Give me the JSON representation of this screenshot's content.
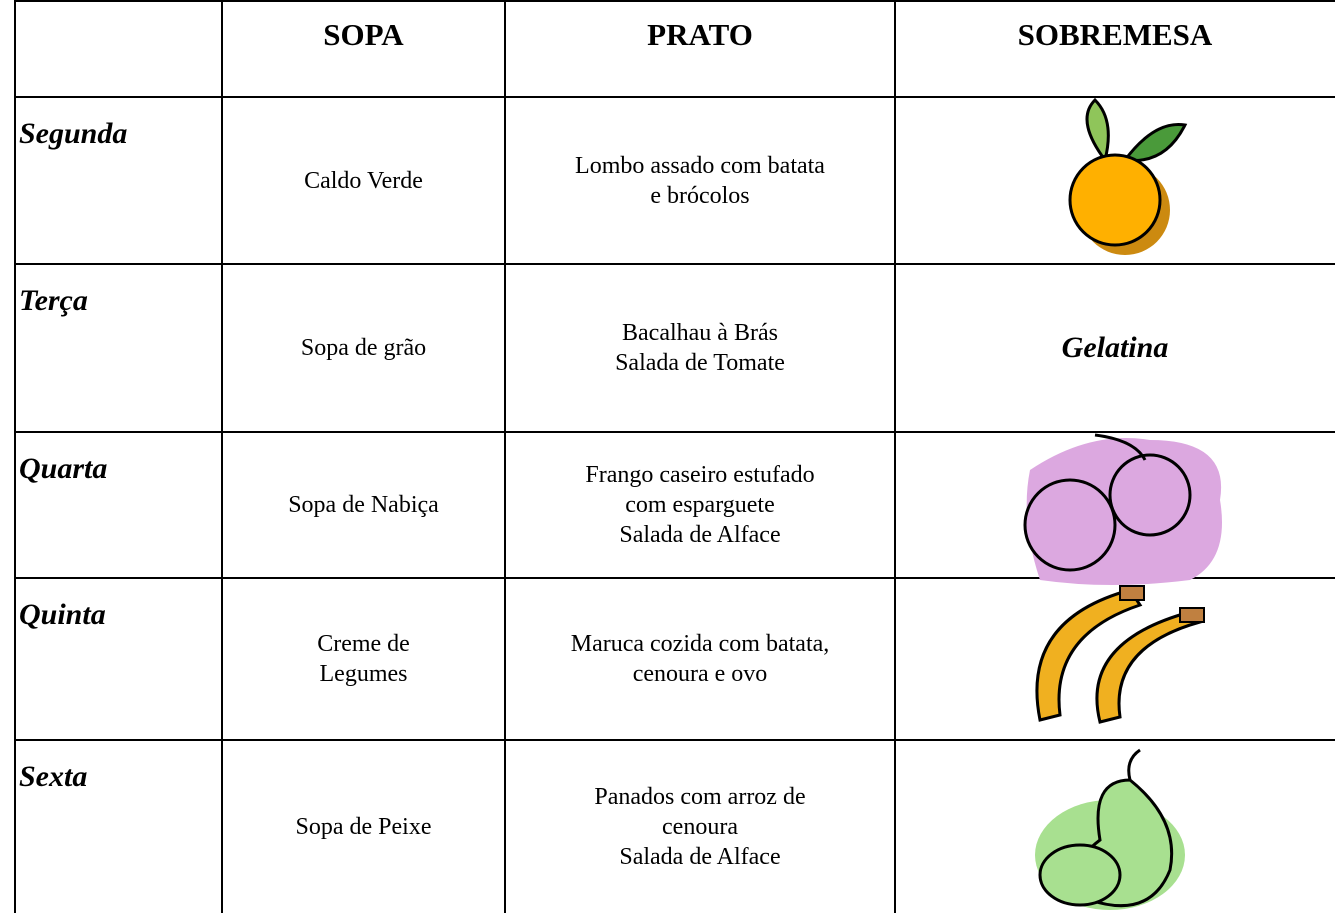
{
  "table": {
    "header": [
      "SOPA",
      "PRATO",
      "SOBREMESA"
    ],
    "rows": [
      {
        "day": "Segunda",
        "sopa": "Caldo Verde",
        "prato": "Lombo assado com batata\ne brócolos"
      },
      {
        "day": "Terça",
        "sopa": "Sopa de grão",
        "prato": "Bacalhau à Brás\nSalada de Tomate",
        "sobremesa": "Gelatina"
      },
      {
        "day": "Quarta",
        "sopa": "Sopa de Nabiça",
        "prato": "Frango caseiro estufado\ncom esparguete\nSalada de Alface"
      },
      {
        "day": "Quinta",
        "sopa": "Creme de\nLegumes",
        "prato": "Maruca cozida com batata,\ncenoura e ovo"
      },
      {
        "day": "Sexta",
        "sopa": "Sopa de Peixe",
        "prato": "Panados com arroz de\ncenoura\nSalada de Alface"
      }
    ]
  }
}
